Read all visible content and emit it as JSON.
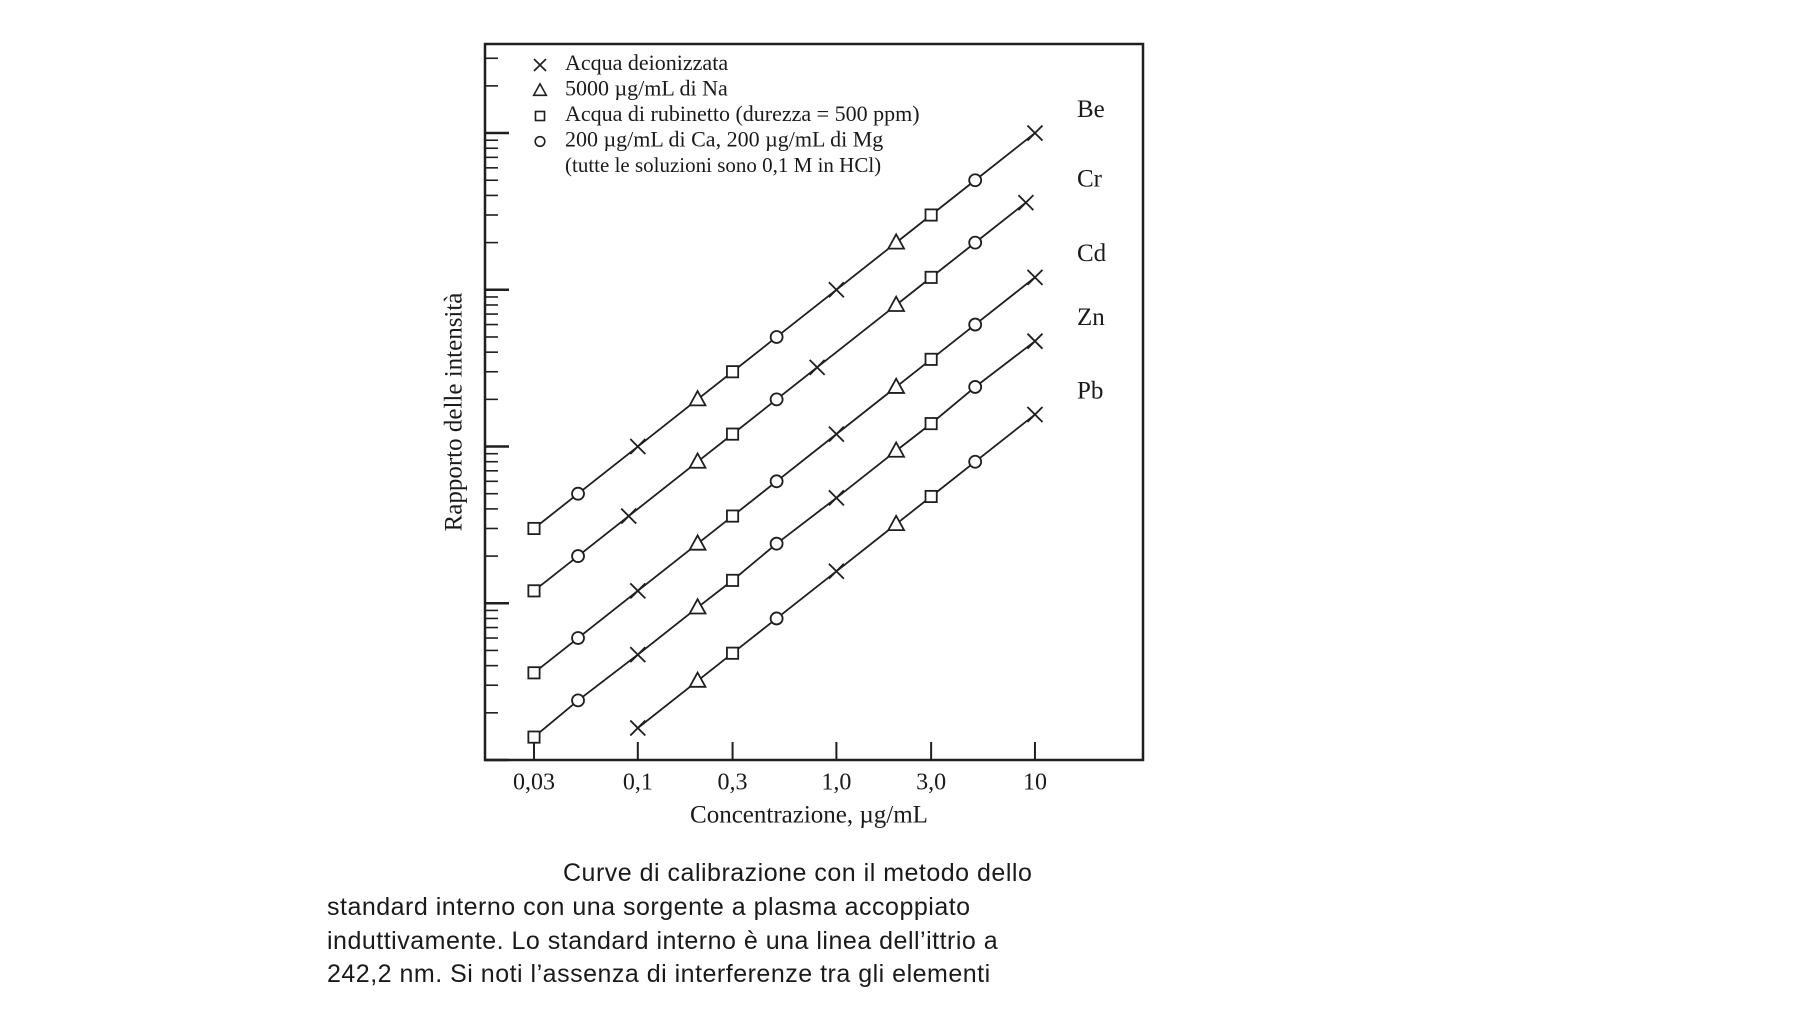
{
  "chart_data": {
    "type": "line",
    "log_x": true,
    "log_y": true,
    "xlabel": "Concentrazione, µg/mL",
    "ylabel": "Rapporto delle intensità",
    "xlim": [
      0.017,
      35
    ],
    "ylim": [
      0.01,
      370
    ],
    "xticks": [
      {
        "value": 0.03,
        "label": "0,03"
      },
      {
        "value": 0.1,
        "label": "0,1"
      },
      {
        "value": 0.3,
        "label": "0,3"
      },
      {
        "value": 1,
        "label": "1,0"
      },
      {
        "value": 3,
        "label": "3,0"
      },
      10
    ],
    "yticks": [
      0.01,
      0.02,
      0.03,
      0.04,
      0.05,
      0.06,
      0.07,
      0.08,
      0.09,
      0.1,
      0.2,
      0.3,
      0.4,
      0.5,
      0.6,
      0.7,
      0.8,
      0.9,
      1,
      2,
      3,
      4,
      5,
      6,
      7,
      8,
      9,
      10,
      20,
      30,
      40,
      50,
      60,
      70,
      80,
      90,
      100,
      200,
      300
    ],
    "ytick_labels": false,
    "color": "#1f1f1f",
    "legend": {
      "entries": [
        {
          "marker": "x",
          "label": "Acqua deionizzata"
        },
        {
          "marker": "triangle",
          "label": "5000 µg/mL di Na"
        },
        {
          "marker": "square",
          "label": "Acqua di rubinetto (durezza = 500 ppm)"
        },
        {
          "marker": "circle",
          "label": "200 µg/mL di Ca, 200 µg/mL di Mg"
        }
      ],
      "note": "(tutte le soluzioni sono 0,1 M in HCl)"
    },
    "series": [
      {
        "name": "Be",
        "x": [
          0.03,
          0.05,
          0.1,
          0.2,
          0.3,
          0.5,
          1,
          2,
          3,
          5,
          10
        ],
        "values": [
          0.3,
          0.5,
          1,
          2,
          3,
          5,
          10,
          20,
          30,
          50,
          100
        ],
        "markers": [
          "square",
          "circle",
          "x",
          "triangle",
          "square",
          "circle",
          "x",
          "triangle",
          "square",
          "circle",
          "x"
        ]
      },
      {
        "name": "Cr",
        "x": [
          0.03,
          0.05,
          0.09,
          0.2,
          0.3,
          0.5,
          0.8,
          2,
          3,
          5,
          9
        ],
        "values": [
          0.12,
          0.2,
          0.36,
          0.8,
          1.2,
          2,
          3.2,
          8,
          12,
          20,
          36
        ],
        "markers": [
          "square",
          "circle",
          "x",
          "triangle",
          "square",
          "circle",
          "x",
          "triangle",
          "square",
          "circle",
          "x"
        ]
      },
      {
        "name": "Cd",
        "x": [
          0.03,
          0.05,
          0.1,
          0.2,
          0.3,
          0.5,
          1,
          2,
          3,
          5,
          10
        ],
        "values": [
          0.036,
          0.06,
          0.12,
          0.24,
          0.36,
          0.6,
          1.2,
          2.4,
          3.6,
          6,
          12
        ],
        "markers": [
          "square",
          "circle",
          "x",
          "triangle",
          "square",
          "circle",
          "x",
          "triangle",
          "square",
          "circle",
          "x"
        ]
      },
      {
        "name": "Zn",
        "x": [
          0.03,
          0.05,
          0.1,
          0.2,
          0.3,
          0.5,
          1,
          2,
          3,
          5,
          10
        ],
        "values": [
          0.014,
          0.024,
          0.047,
          0.094,
          0.14,
          0.24,
          0.47,
          0.94,
          1.4,
          2.4,
          4.7
        ],
        "markers": [
          "square",
          "circle",
          "x",
          "triangle",
          "square",
          "circle",
          "x",
          "triangle",
          "square",
          "circle",
          "x"
        ]
      },
      {
        "name": "Pb",
        "x": [
          0.1,
          0.2,
          0.3,
          0.5,
          1,
          2,
          3,
          5,
          10
        ],
        "values": [
          0.016,
          0.032,
          0.048,
          0.08,
          0.16,
          0.32,
          0.48,
          0.8,
          1.6
        ],
        "markers": [
          "x",
          "triangle",
          "square",
          "circle",
          "x",
          "triangle",
          "square",
          "circle",
          "x"
        ]
      }
    ]
  },
  "caption": [
    "Curve di calibrazione con il metodo dello",
    "standard interno con una sorgente a plasma accoppiato",
    "induttivamente. Lo standard interno è una linea dell’ittrio a",
    "242,2 nm. Si noti l’assenza di interferenze tra gli elementi"
  ]
}
